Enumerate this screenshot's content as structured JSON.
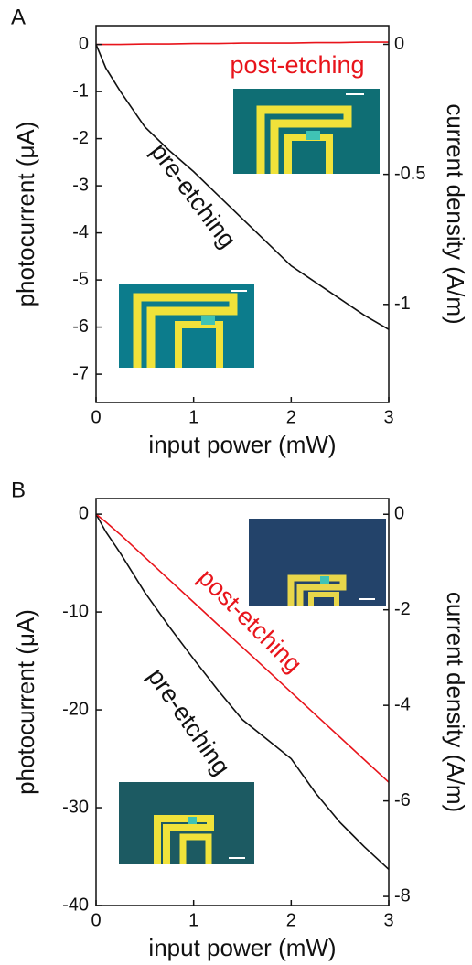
{
  "chart_data": [
    {
      "type": "line",
      "panel_label": "A",
      "x_label": "input power (mW)",
      "y_label": "photocurrent (μA)",
      "y2_label": "current density (A/m)",
      "x": [
        0,
        0.1,
        0.25,
        0.5,
        0.75,
        1,
        1.25,
        1.5,
        1.75,
        2,
        2.25,
        2.5,
        2.75,
        3
      ],
      "series": [
        {
          "name": "pre-etching",
          "color": "#111111",
          "values": [
            0,
            -0.5,
            -1.0,
            -1.75,
            -2.25,
            -2.7,
            -3.2,
            -3.7,
            -4.2,
            -4.7,
            -5.05,
            -5.4,
            -5.75,
            -6.05
          ]
        },
        {
          "name": "post-etching",
          "color": "#e8141b",
          "values": [
            0,
            0,
            0,
            0.01,
            0.01,
            0.02,
            0.02,
            0.03,
            0.03,
            0.03,
            0.04,
            0.04,
            0.05,
            0.05
          ]
        }
      ],
      "xlim": [
        0,
        3
      ],
      "xticks": [
        0,
        1,
        2,
        3
      ],
      "ylim": [
        -7.6,
        0.4
      ],
      "yticks": [
        0,
        -1,
        -2,
        -3,
        -4,
        -5,
        -6,
        -7
      ],
      "y2lim": [
        -1.377,
        0.072
      ],
      "y2ticks": [
        0,
        -0.5,
        -1
      ],
      "grid": false
    },
    {
      "type": "line",
      "panel_label": "B",
      "x_label": "input power (mW)",
      "y_label": "photocurrent (μA)",
      "y2_label": "current density (A/m)",
      "x": [
        0,
        0.1,
        0.25,
        0.5,
        0.75,
        1,
        1.25,
        1.5,
        1.75,
        2,
        2.25,
        2.5,
        2.75,
        3
      ],
      "series": [
        {
          "name": "pre-etching",
          "color": "#111111",
          "values": [
            0,
            -1.8,
            -4,
            -8,
            -11.5,
            -14.8,
            -18,
            -21,
            -23,
            -25,
            -28.5,
            -31.5,
            -34,
            -36.3
          ]
        },
        {
          "name": "post-etching",
          "color": "#e8141b",
          "values": [
            0,
            -0.8,
            -2.1,
            -4.4,
            -6.7,
            -9,
            -11.3,
            -13.6,
            -15.9,
            -18.2,
            -20.5,
            -22.8,
            -25.1,
            -27.4
          ]
        }
      ],
      "xlim": [
        0,
        3
      ],
      "xticks": [
        0,
        1,
        2,
        3
      ],
      "ylim": [
        -40,
        1.6
      ],
      "yticks": [
        0,
        -10,
        -20,
        -30,
        -40
      ],
      "y2lim": [
        -8.19,
        0.33
      ],
      "y2ticks": [
        0,
        -2,
        -4,
        -6,
        -8
      ],
      "grid": false
    }
  ]
}
